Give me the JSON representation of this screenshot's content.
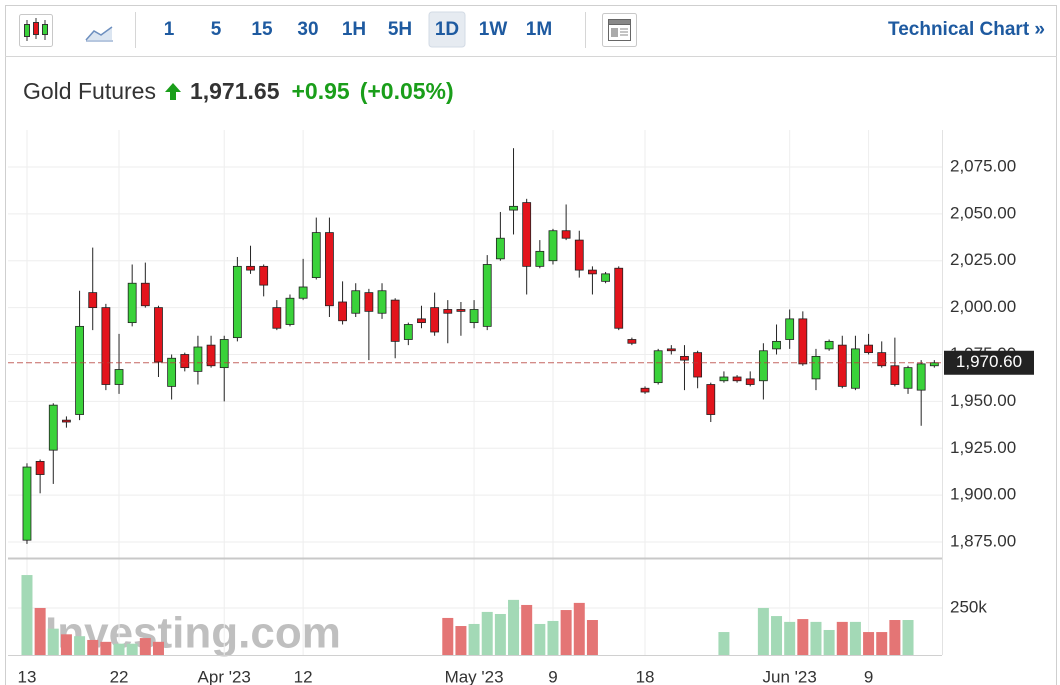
{
  "toolbar": {
    "intervals": [
      "1",
      "5",
      "15",
      "30",
      "1H",
      "5H",
      "1D",
      "1W",
      "1M"
    ],
    "selected": "1D",
    "link": "Technical Chart »"
  },
  "quote": {
    "name": "Gold Futures",
    "direction": "up",
    "last": "1,971.65",
    "change": "+0.95",
    "change_percent": "(+0.05%)"
  },
  "watermark": "Investing.com",
  "chart_data": {
    "type": "candlestick",
    "categories": [
      "13",
      null,
      null,
      null,
      null,
      null,
      null,
      "22",
      null,
      null,
      null,
      null,
      null,
      null,
      null,
      "Apr '23",
      null,
      null,
      null,
      null,
      null,
      "12",
      null,
      null,
      null,
      null,
      null,
      null,
      null,
      null,
      null,
      null,
      null,
      null,
      "May '23",
      null,
      null,
      null,
      null,
      null,
      "9",
      null,
      null,
      null,
      null,
      null,
      null,
      "18",
      null,
      null,
      null,
      null,
      null,
      null,
      null,
      null,
      null,
      null,
      "Jun '23",
      null,
      null,
      null,
      null,
      null,
      "9",
      null,
      null,
      null,
      null,
      null
    ],
    "open": [
      1876,
      1918,
      1924,
      1940,
      1943,
      2008,
      2000,
      1959,
      1992,
      2013,
      2000,
      1958,
      1975,
      1966,
      1980,
      1968,
      1984,
      2022,
      2022,
      2000,
      1991,
      2005,
      2016,
      2040,
      2003,
      1997,
      2008,
      1997,
      2004,
      1983,
      1994,
      2000,
      1999,
      1999,
      1992,
      1990,
      2026,
      2052,
      2056,
      2022,
      2025,
      2041,
      2036,
      2020,
      2014,
      2021,
      1983,
      1957,
      1960,
      1978,
      1974,
      1976,
      1959,
      1961,
      1963,
      1962,
      1961,
      1978,
      1983,
      1994,
      1962,
      1978,
      1980,
      1957,
      1980,
      1976,
      1969,
      1957,
      1956,
      1969
    ],
    "high": [
      1917,
      1919,
      1949,
      1942,
      2009,
      2032,
      2002,
      1986,
      2023,
      2024,
      2001,
      1975,
      1976,
      1985,
      1985,
      1985,
      2027,
      2033,
      2023,
      2004,
      2007,
      2026,
      2048,
      2048,
      2014,
      2013,
      2010,
      2013,
      2005,
      1992,
      2001,
      2008,
      2004,
      2003,
      2004,
      2028,
      2051,
      2085,
      2058,
      2036,
      2042,
      2055,
      2041,
      2022,
      2019,
      2022,
      1984,
      1958,
      1978,
      1980,
      1980,
      1977,
      1960,
      1966,
      1964,
      1966,
      1981,
      1991,
      1999,
      1998,
      1978,
      1983,
      1985,
      1985,
      1986,
      1982,
      1984,
      1969,
      1972,
      1972
    ],
    "low": [
      1874,
      1901,
      1906,
      1936,
      1940,
      1988,
      1956,
      1954,
      1990,
      2000,
      1963,
      1951,
      1966,
      1959,
      1968,
      1950,
      1982,
      2018,
      2006,
      1988,
      1990,
      2004,
      2015,
      1995,
      1991,
      1995,
      1972,
      1994,
      1973,
      1980,
      1989,
      1985,
      1981,
      1985,
      1989,
      1988,
      2025,
      2039,
      2007,
      2021,
      2023,
      2036,
      2016,
      2007,
      2013,
      1988,
      1980,
      1954,
      1959,
      1975,
      1956,
      1957,
      1939,
      1960,
      1960,
      1958,
      1951,
      1975,
      1978,
      1969,
      1956,
      1977,
      1957,
      1956,
      1975,
      1968,
      1958,
      1954,
      1937,
      1968
    ],
    "close": [
      1915,
      1911,
      1948,
      1939,
      1990,
      2000,
      1959,
      1967,
      2013,
      2001,
      1971,
      1973,
      1968,
      1979,
      1969,
      1983,
      2022,
      2020,
      2012,
      1989,
      2005,
      2011,
      2040,
      2001,
      1993,
      2009,
      1998,
      2009,
      1982,
      1991,
      1992,
      1987,
      1997,
      1998,
      1999,
      2023,
      2037,
      2054,
      2022,
      2030,
      2041,
      2037,
      2020,
      2018,
      2018,
      1989,
      1981,
      1955,
      1977,
      1977,
      1972,
      1963,
      1943,
      1963,
      1961,
      1959,
      1977,
      1982,
      1994,
      1970,
      1974,
      1982,
      1958,
      1978,
      1976,
      1969,
      1959,
      1968,
      1970,
      1970.6
    ],
    "volume": [
      425000,
      250000,
      140000,
      110000,
      100000,
      80000,
      70000,
      60000,
      60000,
      90000,
      70000,
      null,
      null,
      null,
      null,
      null,
      null,
      null,
      null,
      null,
      null,
      null,
      null,
      null,
      null,
      null,
      null,
      null,
      null,
      null,
      null,
      null,
      197000,
      154000,
      165000,
      229000,
      218000,
      293000,
      266000,
      165000,
      181000,
      239000,
      277000,
      186000,
      null,
      null,
      null,
      null,
      null,
      null,
      null,
      null,
      null,
      122000,
      null,
      null,
      250000,
      207000,
      176000,
      191000,
      176000,
      133000,
      176000,
      176000,
      122000,
      122000,
      186000,
      186000,
      null,
      null
    ],
    "up_color": "#3ad23a",
    "down_color": "#e3141c",
    "volume_up_color": "#a3d9b6",
    "volume_down_color": "#e47575",
    "ylim": [
      1866.5,
      2094.7
    ],
    "yticks": [
      {
        "value": 1875,
        "label": "1,875.00"
      },
      {
        "value": 1900,
        "label": "1,900.00"
      },
      {
        "value": 1925,
        "label": "1,925.00"
      },
      {
        "value": 1950,
        "label": "1,950.00"
      },
      {
        "value": 1975,
        "label": "1,975.00"
      },
      {
        "value": 2000,
        "label": "2,000.00"
      },
      {
        "value": 2025,
        "label": "2,025.00"
      },
      {
        "value": 2050,
        "label": "2,050.00"
      },
      {
        "value": 2075,
        "label": "2,075.00"
      }
    ],
    "volume_ylim": [
      0,
      505000
    ],
    "volume_yticks": [
      {
        "value": 250000,
        "label": "250k"
      }
    ],
    "last_price": {
      "value": 1970.6,
      "label": "1,970.60"
    },
    "grid": true
  }
}
